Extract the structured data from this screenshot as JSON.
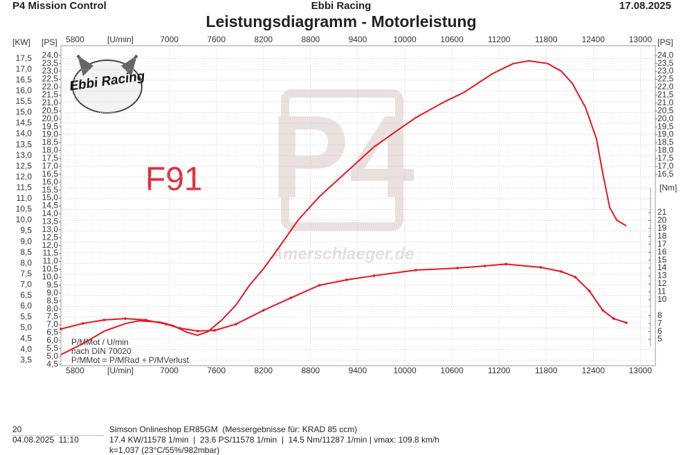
{
  "header": {
    "left": "P4 Mission Control",
    "center": "Ebbi Racing",
    "right": "17.08.2025"
  },
  "chart_data": {
    "type": "line",
    "title": "Leistungsdiagramm - Motorleistung",
    "logo_text": "Ebbi Racing",
    "watermark_text": "Amerschlaeger.de",
    "annotation": "F91",
    "notes": [
      "P/MMot / U/min",
      "nach DIN 70020",
      "P/MMot = P/MRad + P/MVerlust"
    ],
    "x_label": "[U/min]",
    "y_label": "[KW]",
    "y_ps_label": "[PS]",
    "y2_label": "[Nm]",
    "xlim": [
      5620,
      13190
    ],
    "xticks": [
      5800,
      7000,
      7600,
      8200,
      8800,
      9400,
      10000,
      10600,
      11200,
      11800,
      12400,
      13000
    ],
    "ylim": [
      3.25,
      18.1
    ],
    "yticks": [
      {
        "value": 3.5,
        "label": "3,5"
      },
      {
        "value": 4,
        "label": "4,0"
      },
      {
        "value": 4.5,
        "label": "4,5"
      },
      {
        "value": 5,
        "label": "5,0"
      },
      {
        "value": 5.5,
        "label": "5,5"
      },
      {
        "value": 6,
        "label": "6,0"
      },
      {
        "value": 6.5,
        "label": "6,5"
      },
      {
        "value": 7,
        "label": "7,0"
      },
      {
        "value": 7.5,
        "label": "7,5"
      },
      {
        "value": 8,
        "label": "8,0"
      },
      {
        "value": 8.5,
        "label": "8,5"
      },
      {
        "value": 9,
        "label": "9,0"
      },
      {
        "value": 9.5,
        "label": "9,5"
      },
      {
        "value": 10,
        "label": "10,0"
      },
      {
        "value": 10.5,
        "label": "10,5"
      },
      {
        "value": 11,
        "label": "11,0"
      },
      {
        "value": 11.5,
        "label": "11,5"
      },
      {
        "value": 12,
        "label": "12,0"
      },
      {
        "value": 12.5,
        "label": "12,5"
      },
      {
        "value": 13,
        "label": "13,0"
      },
      {
        "value": 13.5,
        "label": "13,5"
      },
      {
        "value": 14,
        "label": "14,0"
      },
      {
        "value": 14.5,
        "label": "14,5"
      },
      {
        "value": 15,
        "label": "15,0"
      },
      {
        "value": 15.5,
        "label": "15,5"
      },
      {
        "value": 16,
        "label": "16,0"
      },
      {
        "value": 16.5,
        "label": "16,5"
      },
      {
        "value": 17,
        "label": "17,0"
      },
      {
        "value": 17.5,
        "label": "17,5"
      }
    ],
    "ylim_ps": [
      4.42,
      24.62
    ],
    "yticks_ps": [
      {
        "value": 4.5,
        "label": "4,5"
      },
      {
        "value": 5,
        "label": "5,0"
      },
      {
        "value": 5.5,
        "label": "5,5"
      },
      {
        "value": 6,
        "label": "6,0"
      },
      {
        "value": 6.5,
        "label": "6,5"
      },
      {
        "value": 7,
        "label": "7,0"
      },
      {
        "value": 7.5,
        "label": "7,5"
      },
      {
        "value": 8,
        "label": "8,0"
      },
      {
        "value": 8.5,
        "label": "8,5"
      },
      {
        "value": 9,
        "label": "9,0"
      },
      {
        "value": 9.5,
        "label": "9,5"
      },
      {
        "value": 10,
        "label": "10,0"
      },
      {
        "value": 10.5,
        "label": "10,5"
      },
      {
        "value": 11,
        "label": "11,0"
      },
      {
        "value": 11.5,
        "label": "11,5"
      },
      {
        "value": 12,
        "label": "12,0"
      },
      {
        "value": 12.5,
        "label": "12,5"
      },
      {
        "value": 13,
        "label": "13,0"
      },
      {
        "value": 13.5,
        "label": "13,5"
      },
      {
        "value": 14,
        "label": "14,0"
      },
      {
        "value": 14.5,
        "label": "14,5"
      },
      {
        "value": 15,
        "label": "15,0"
      },
      {
        "value": 15.5,
        "label": "15,5"
      },
      {
        "value": 16,
        "label": "16,0"
      },
      {
        "value": 16.5,
        "label": "16,5"
      },
      {
        "value": 17,
        "label": "17,0"
      },
      {
        "value": 17.5,
        "label": "17,5"
      },
      {
        "value": 18,
        "label": "18,0"
      },
      {
        "value": 18.5,
        "label": "18,5"
      },
      {
        "value": 19,
        "label": "19,0"
      },
      {
        "value": 19.5,
        "label": "19,5"
      },
      {
        "value": 20,
        "label": "20,0"
      },
      {
        "value": 20.5,
        "label": "20,5"
      },
      {
        "value": 21,
        "label": "21,0"
      },
      {
        "value": 21.5,
        "label": "21,5"
      },
      {
        "value": 22,
        "label": "22,0"
      },
      {
        "value": 22.5,
        "label": "22,5"
      },
      {
        "value": 23,
        "label": "23,0"
      },
      {
        "value": 23.5,
        "label": "23,5"
      },
      {
        "value": 24,
        "label": "24,0"
      }
    ],
    "yticks_ps_right": [
      {
        "value": 16.5,
        "label": "16,5"
      },
      {
        "value": 17,
        "label": "17,0"
      },
      {
        "value": 17.5,
        "label": "17,5"
      },
      {
        "value": 18,
        "label": "18,0"
      },
      {
        "value": 18.5,
        "label": "18,5"
      },
      {
        "value": 19,
        "label": "19,0"
      },
      {
        "value": 19.5,
        "label": "19,5"
      },
      {
        "value": 20,
        "label": "20,0"
      },
      {
        "value": 20.5,
        "label": "20,5"
      },
      {
        "value": 21,
        "label": "21,0"
      },
      {
        "value": 21.5,
        "label": "21,5"
      },
      {
        "value": 22,
        "label": "22,0"
      },
      {
        "value": 22.5,
        "label": "22,5"
      },
      {
        "value": 23,
        "label": "23,0"
      },
      {
        "value": 23.5,
        "label": "23,5"
      },
      {
        "value": 24,
        "label": "24,0"
      }
    ],
    "y2lim": [
      1.68,
      42.07
    ],
    "y2ticks": [
      5,
      6,
      7,
      8,
      10,
      11,
      12,
      13,
      14,
      15,
      16,
      17,
      18,
      19,
      20,
      21
    ],
    "grid": true,
    "series": [
      {
        "color": "#e8141e",
        "markers": false,
        "axis": "y",
        "x": [
          5620,
          5900,
          6170,
          6440,
          6610,
          6880,
          7050,
          7230,
          7360,
          7490,
          7670,
          7850,
          8020,
          8200,
          8380,
          8640,
          8910,
          9260,
          9610,
          9960,
          10140,
          10490,
          10760,
          11110,
          11380,
          11578,
          11820,
          11990,
          12130,
          12300,
          12440,
          12520,
          12610,
          12700,
          12820
        ],
        "values": [
          3.76,
          4.27,
          4.85,
          5.2,
          5.33,
          5.27,
          5.11,
          4.79,
          4.66,
          4.82,
          5.37,
          6.07,
          6.97,
          7.75,
          8.65,
          10.0,
          11.09,
          12.25,
          13.41,
          14.31,
          14.76,
          15.47,
          15.95,
          16.79,
          17.27,
          17.4,
          17.27,
          16.92,
          16.37,
          15.24,
          13.79,
          12.19,
          10.58,
          10.0,
          9.74
        ]
      },
      {
        "color": "#e8141e",
        "markers": true,
        "axis": "y2",
        "x": [
          5620,
          5900,
          6170,
          6440,
          6700,
          6960,
          7140,
          7360,
          7580,
          7850,
          8200,
          8550,
          8910,
          9260,
          9610,
          10140,
          10670,
          11020,
          11287,
          11730,
          11990,
          12170,
          12350,
          12520,
          12660,
          12820
        ],
        "values": [
          6.31,
          7.01,
          7.45,
          7.62,
          7.45,
          6.92,
          6.4,
          6.05,
          6.14,
          6.92,
          8.67,
          10.24,
          11.82,
          12.52,
          13.04,
          13.74,
          14.0,
          14.27,
          14.5,
          14.09,
          13.57,
          12.87,
          11.12,
          8.67,
          7.62,
          7.1
        ]
      }
    ]
  },
  "footer": {
    "run": "20",
    "datetime": "04.08.2025  11:10",
    "vehicle": "Simson Onlineshop ER85GM  (Messergebnisse für: KRAD 85 ccm)",
    "stats": "17.4 KW/11578 1/min  |  23.6 PS/11578 1/min  |  14.5 Nm/11287 1/min | vmax: 109.8 km/h",
    "conditions": "k=1,037 (23°C/55%/982mbar)"
  }
}
